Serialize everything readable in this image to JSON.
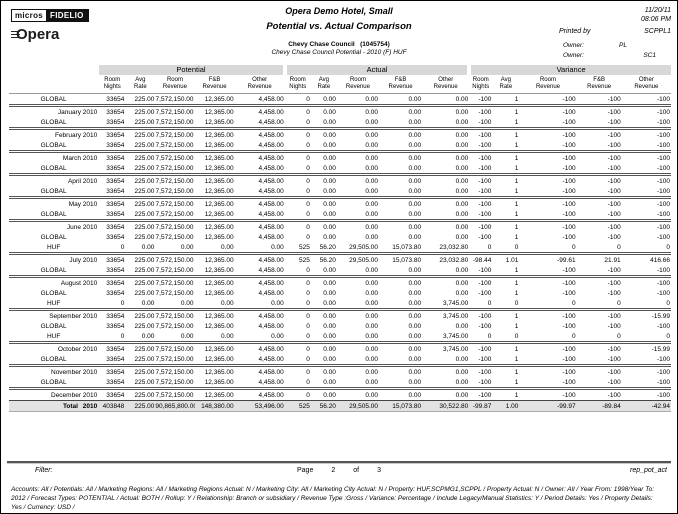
{
  "logo": {
    "micros": "micros",
    "fidelio": "FIDELIO",
    "opera": "pera"
  },
  "header": {
    "hotel_name": "Opera Demo Hotel, Small",
    "report_title": "Potential vs. Actual Comparison",
    "date": "11/20/11",
    "time": "08:06 PM",
    "printed_by_label": "Printed by",
    "printed_by_value": "SCPPL1",
    "account_name": "Chevy Chase Council",
    "account_number": "(1045754)",
    "account_subtitle": "Chevy Chase Council Potential - 2010 (F) HUF",
    "owner1_label": "Owner:",
    "owner1_value": "PL",
    "owner2_label": "Owner:",
    "owner2_value": "SC1"
  },
  "table": {
    "groups": [
      "Potential",
      "Actual",
      "Variance"
    ],
    "columns": [
      "Room\nNights",
      "Avg\nRate",
      "Room\nRevenue",
      "F&B\nRevenue",
      "Other\nRevenue"
    ],
    "rows": [
      {
        "label": "GLOBAL",
        "type": "detail",
        "cells": [
          "33654",
          "225.00",
          "7,572,150.00",
          "12,365.00",
          "4,458.00",
          "0",
          "0.00",
          "0.00",
          "0.00",
          "0.00",
          "-100",
          "1",
          "-100",
          "-100",
          "-100"
        ]
      },
      {
        "label": "January 2010",
        "type": "month",
        "cells": [
          "33654",
          "225.00",
          "7,572,150.00",
          "12,365.00",
          "4,458.00",
          "0",
          "0.00",
          "0.00",
          "0.00",
          "0.00",
          "-100",
          "1",
          "-100",
          "-100",
          "-100"
        ]
      },
      {
        "label": "GLOBAL",
        "type": "detail",
        "cells": [
          "33654",
          "225.00",
          "7,572,150.00",
          "12,365.00",
          "4,458.00",
          "0",
          "0.00",
          "0.00",
          "0.00",
          "0.00",
          "-100",
          "1",
          "-100",
          "-100",
          "-100"
        ]
      },
      {
        "label": "February 2010",
        "type": "month",
        "cells": [
          "33654",
          "225.00",
          "7,572,150.00",
          "12,365.00",
          "4,458.00",
          "0",
          "0.00",
          "0.00",
          "0.00",
          "0.00",
          "-100",
          "1",
          "-100",
          "-100",
          "-100"
        ]
      },
      {
        "label": "GLOBAL",
        "type": "detail",
        "cells": [
          "33654",
          "225.00",
          "7,572,150.00",
          "12,365.00",
          "4,458.00",
          "0",
          "0.00",
          "0.00",
          "0.00",
          "0.00",
          "-100",
          "1",
          "-100",
          "-100",
          "-100"
        ]
      },
      {
        "label": "March 2010",
        "type": "month",
        "cells": [
          "33654",
          "225.00",
          "7,572,150.00",
          "12,365.00",
          "4,458.00",
          "0",
          "0.00",
          "0.00",
          "0.00",
          "0.00",
          "-100",
          "1",
          "-100",
          "-100",
          "-100"
        ]
      },
      {
        "label": "GLOBAL",
        "type": "detail",
        "cells": [
          "33654",
          "225.00",
          "7,572,150.00",
          "12,365.00",
          "4,458.00",
          "0",
          "0.00",
          "0.00",
          "0.00",
          "0.00",
          "-100",
          "1",
          "-100",
          "-100",
          "-100"
        ]
      },
      {
        "label": "April 2010",
        "type": "month",
        "cells": [
          "33654",
          "225.00",
          "7,572,150.00",
          "12,365.00",
          "4,458.00",
          "0",
          "0.00",
          "0.00",
          "0.00",
          "0.00",
          "-100",
          "1",
          "-100",
          "-100",
          "-100"
        ]
      },
      {
        "label": "GLOBAL",
        "type": "detail",
        "cells": [
          "33654",
          "225.00",
          "7,572,150.00",
          "12,365.00",
          "4,458.00",
          "0",
          "0.00",
          "0.00",
          "0.00",
          "0.00",
          "-100",
          "1",
          "-100",
          "-100",
          "-100"
        ]
      },
      {
        "label": "May 2010",
        "type": "month",
        "cells": [
          "33654",
          "225.00",
          "7,572,150.00",
          "12,365.00",
          "4,458.00",
          "0",
          "0.00",
          "0.00",
          "0.00",
          "0.00",
          "-100",
          "1",
          "-100",
          "-100",
          "-100"
        ]
      },
      {
        "label": "GLOBAL",
        "type": "detail",
        "cells": [
          "33654",
          "225.00",
          "7,572,150.00",
          "12,365.00",
          "4,458.00",
          "0",
          "0.00",
          "0.00",
          "0.00",
          "0.00",
          "-100",
          "1",
          "-100",
          "-100",
          "-100"
        ]
      },
      {
        "label": "June 2010",
        "type": "month",
        "cells": [
          "33654",
          "225.00",
          "7,572,150.00",
          "12,365.00",
          "4,458.00",
          "0",
          "0.00",
          "0.00",
          "0.00",
          "0.00",
          "-100",
          "1",
          "-100",
          "-100",
          "-100"
        ]
      },
      {
        "label": "GLOBAL",
        "type": "detail",
        "cells": [
          "33654",
          "225.00",
          "7,572,150.00",
          "12,365.00",
          "4,458.00",
          "0",
          "0.00",
          "0.00",
          "0.00",
          "0.00",
          "-100",
          "1",
          "-100",
          "-100",
          "-100"
        ]
      },
      {
        "label": "HUF",
        "type": "detail",
        "cells": [
          "0",
          "0.00",
          "0.00",
          "0.00",
          "0.00",
          "525",
          "56.20",
          "29,505.00",
          "15,073.80",
          "23,032.80",
          "0",
          "0",
          "0",
          "0",
          "0"
        ]
      },
      {
        "label": "July 2010",
        "type": "month",
        "cells": [
          "33654",
          "225.00",
          "7,572,150.00",
          "12,365.00",
          "4,458.00",
          "525",
          "56.20",
          "29,505.00",
          "15,073.80",
          "23,032.80",
          "-98.44",
          "1.01",
          "-99.61",
          "21.91",
          "416.66"
        ]
      },
      {
        "label": "GLOBAL",
        "type": "detail",
        "cells": [
          "33654",
          "225.00",
          "7,572,150.00",
          "12,365.00",
          "4,458.00",
          "0",
          "0.00",
          "0.00",
          "0.00",
          "0.00",
          "-100",
          "1",
          "-100",
          "-100",
          "-100"
        ]
      },
      {
        "label": "August 2010",
        "type": "month",
        "cells": [
          "33654",
          "225.00",
          "7,572,150.00",
          "12,365.00",
          "4,458.00",
          "0",
          "0.00",
          "0.00",
          "0.00",
          "0.00",
          "-100",
          "1",
          "-100",
          "-100",
          "-100"
        ]
      },
      {
        "label": "GLOBAL",
        "type": "detail",
        "cells": [
          "33654",
          "225.00",
          "7,572,150.00",
          "12,365.00",
          "4,458.00",
          "0",
          "0.00",
          "0.00",
          "0.00",
          "0.00",
          "-100",
          "1",
          "-100",
          "-100",
          "-100"
        ]
      },
      {
        "label": "HUF",
        "type": "detail",
        "cells": [
          "0",
          "0.00",
          "0.00",
          "0.00",
          "0.00",
          "0",
          "0.00",
          "0.00",
          "0.00",
          "3,745.00",
          "0",
          "0",
          "0",
          "0",
          "0"
        ]
      },
      {
        "label": "September 2010",
        "type": "month",
        "cells": [
          "33654",
          "225.00",
          "7,572,150.00",
          "12,365.00",
          "4,458.00",
          "0",
          "0.00",
          "0.00",
          "0.00",
          "3,745.00",
          "-100",
          "1",
          "-100",
          "-100",
          "-15.99"
        ]
      },
      {
        "label": "GLOBAL",
        "type": "detail",
        "cells": [
          "33654",
          "225.00",
          "7,572,150.00",
          "12,365.00",
          "4,458.00",
          "0",
          "0.00",
          "0.00",
          "0.00",
          "0.00",
          "-100",
          "1",
          "-100",
          "-100",
          "-100"
        ]
      },
      {
        "label": "HUF",
        "type": "detail",
        "cells": [
          "0",
          "0.00",
          "0.00",
          "0.00",
          "0.00",
          "0",
          "0.00",
          "0.00",
          "0.00",
          "3,745.00",
          "0",
          "0",
          "0",
          "0",
          "0"
        ]
      },
      {
        "label": "October 2010",
        "type": "month",
        "cells": [
          "33654",
          "225.00",
          "7,572,150.00",
          "12,365.00",
          "4,458.00",
          "0",
          "0.00",
          "0.00",
          "0.00",
          "3,745.00",
          "-100",
          "1",
          "-100",
          "-100",
          "-15.99"
        ]
      },
      {
        "label": "GLOBAL",
        "type": "detail",
        "cells": [
          "33654",
          "225.00",
          "7,572,150.00",
          "12,365.00",
          "4,458.00",
          "0",
          "0.00",
          "0.00",
          "0.00",
          "0.00",
          "-100",
          "1",
          "-100",
          "-100",
          "-100"
        ]
      },
      {
        "label": "November 2010",
        "type": "month",
        "cells": [
          "33654",
          "225.00",
          "7,572,150.00",
          "12,365.00",
          "4,458.00",
          "0",
          "0.00",
          "0.00",
          "0.00",
          "0.00",
          "-100",
          "1",
          "-100",
          "-100",
          "-100"
        ]
      },
      {
        "label": "GLOBAL",
        "type": "detail",
        "cells": [
          "33654",
          "225.00",
          "7,572,150.00",
          "12,365.00",
          "4,458.00",
          "0",
          "0.00",
          "0.00",
          "0.00",
          "0.00",
          "-100",
          "1",
          "-100",
          "-100",
          "-100"
        ]
      },
      {
        "label": "December 2010",
        "type": "month",
        "cells": [
          "33654",
          "225.00",
          "7,572,150.00",
          "12,365.00",
          "4,458.00",
          "0",
          "0.00",
          "0.00",
          "0.00",
          "0.00",
          "-100",
          "1",
          "-100",
          "-100",
          "-100"
        ]
      },
      {
        "label": "Total  2010",
        "type": "total",
        "cells": [
          "403848",
          "225.00",
          "90,865,800.00",
          "148,380.00",
          "53,496.00",
          "525",
          "56.20",
          "29,505.00",
          "15,073.80",
          "30,522.80",
          "-99.87",
          "1.00",
          "-99.97",
          "-89.84",
          "-42.94"
        ]
      }
    ]
  },
  "footer": {
    "filter_label": "Filter:",
    "page_label": "Page",
    "page_num": "2",
    "of_label": "of",
    "page_total": "3",
    "report_id": "rep_pot_act",
    "params": "Accounts: All / Potentials: All / Marketing Regions: All / Marketing Regions Actual: N / Marketing City: All / Marketing City Actual: N / Property: HUF,SCPMG1,SCPPL / Property Actual: N / Owner: All / Year From: 1998/Year To: 2012 / Forecast Types: POTENTIAL / Actual: BOTH / Rollup: Y / Relationship: Branch or subsidiary / Revenue Type :Gross / Variance: Percentage / Include Legacy/Manual Statistics: Y / Period Details: Yes / Property Details: Yes / Currency: USD /"
  }
}
